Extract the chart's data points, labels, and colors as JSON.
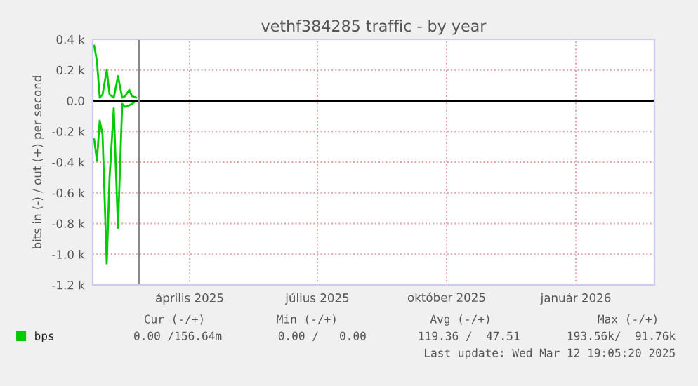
{
  "chart_data": {
    "type": "line",
    "title": "vethf384285 traffic - by year",
    "ylabel": "bits in (-) / out (+) per second",
    "series": [
      {
        "color": "#00cc00",
        "x": [
          "2025-02-06",
          "2025-02-08",
          "2025-02-10",
          "2025-02-12",
          "2025-02-15",
          "2025-02-17",
          "2025-02-20",
          "2025-02-23",
          "2025-02-26",
          "2025-02-28",
          "2025-03-03",
          "2025-03-05",
          "2025-03-08"
        ],
        "values": [
          -250,
          -390,
          -130,
          -220,
          -1060,
          -500,
          -50,
          -830,
          -20,
          -40,
          -30,
          -20,
          0
        ]
      },
      {
        "name": "bps",
        "color": "#00cc00",
        "x": [
          "2025-02-06",
          "2025-02-08",
          "2025-02-10",
          "2025-02-12",
          "2025-02-15",
          "2025-02-17",
          "2025-02-20",
          "2025-02-23",
          "2025-02-26",
          "2025-02-28",
          "2025-03-03",
          "2025-03-05",
          "2025-03-08"
        ],
        "values": [
          360,
          260,
          20,
          40,
          200,
          40,
          20,
          160,
          20,
          30,
          70,
          30,
          20
        ]
      }
    ],
    "xlim": [
      "2025-02-05",
      "2026-03-12"
    ],
    "xticks": [
      {
        "value": "2025-04-15",
        "label": "április 2025"
      },
      {
        "value": "2025-07-15",
        "label": "július 2025"
      },
      {
        "value": "2025-10-15",
        "label": "október 2025"
      },
      {
        "value": "2026-01-15",
        "label": "január 2026"
      }
    ],
    "ylim": [
      -1200,
      400
    ],
    "yticks": [
      {
        "value": -1200,
        "label": "-1.2 k"
      },
      {
        "value": -1000,
        "label": "-1.0 k"
      },
      {
        "value": -800,
        "label": "-0.8 k"
      },
      {
        "value": -600,
        "label": "-0.6 k"
      },
      {
        "value": -400,
        "label": "-0.4 k"
      },
      {
        "value": -200,
        "label": "-0.2 k"
      },
      {
        "value": 0,
        "label": "0.0"
      },
      {
        "value": 200,
        "label": "0.2 k"
      },
      {
        "value": 400,
        "label": "0.4 k"
      }
    ],
    "ref_lines": [
      {
        "axis": "y",
        "value": 0,
        "color": "#000000"
      },
      {
        "axis": "x",
        "value": "2025-03-10",
        "color": "#888888"
      }
    ],
    "grid": true,
    "legend": "bottom left",
    "annotations": [
      "Cur (-/+)",
      "Min (-/+)",
      "Avg (-/+)",
      "Max (-/+)",
      "0.00 /156.64m",
      "0.00 /   0.00",
      "119.36 /  47.51",
      "193.56k/  91.76k",
      "Last update: Wed Mar 12 19:05:20 2025"
    ]
  }
}
